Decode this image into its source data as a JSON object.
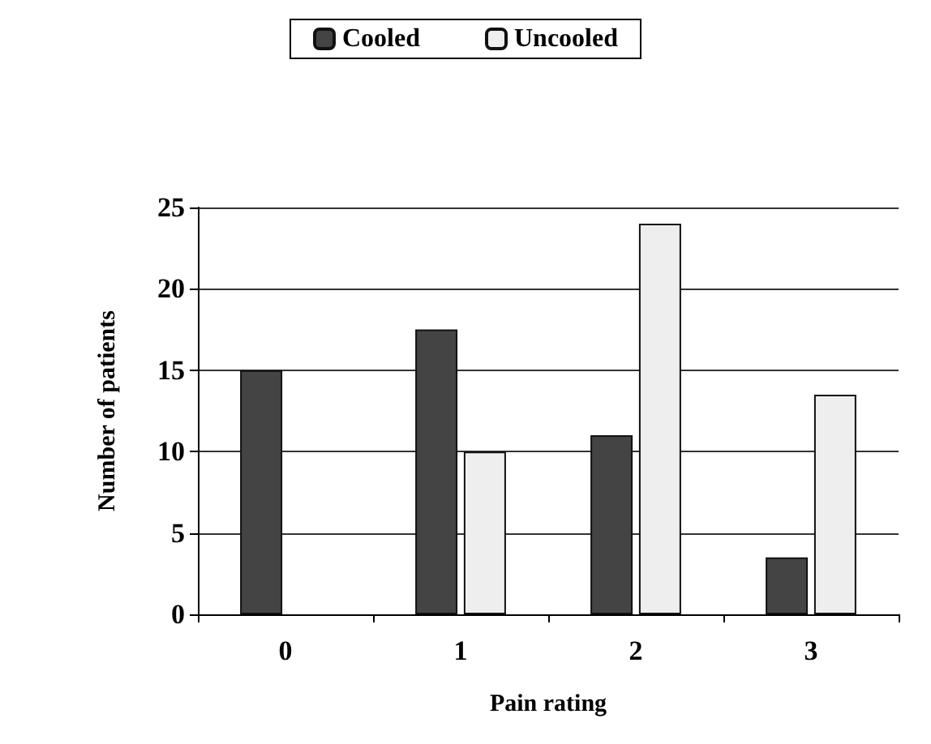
{
  "chart_data": {
    "type": "bar",
    "xlabel": "Pain rating",
    "ylabel": "Number of patients",
    "categories": [
      "0",
      "1",
      "2",
      "3"
    ],
    "series": [
      {
        "name": "Cooled",
        "color": "#444444",
        "values": [
          15,
          17.5,
          11,
          3.5
        ]
      },
      {
        "name": "Uncooled",
        "color": "#eeeeee",
        "values": [
          0,
          10,
          24,
          13.5
        ]
      }
    ],
    "ylim": [
      0,
      25
    ],
    "yticks": [
      0,
      5,
      10,
      15,
      20,
      25
    ],
    "grid": "y",
    "legend": "top"
  }
}
